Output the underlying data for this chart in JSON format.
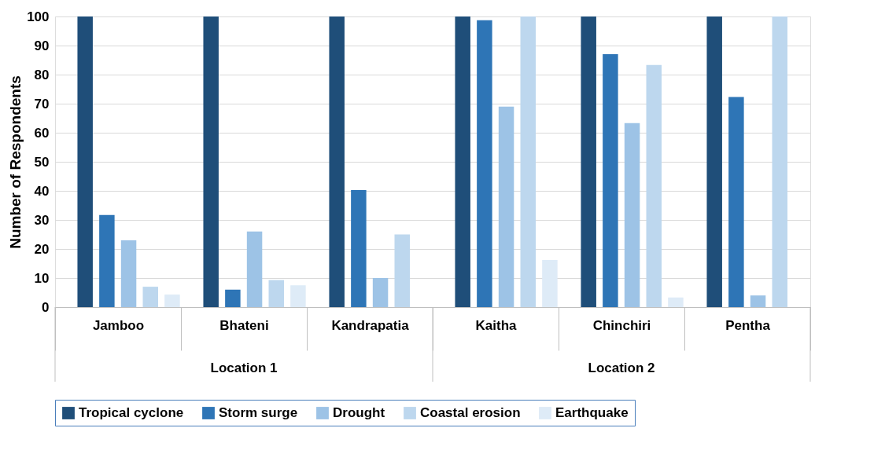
{
  "chart_data": {
    "type": "bar",
    "ylabel": "Number of Respondents",
    "categories": [
      "Jamboo",
      "Bhateni",
      "Kandrapatia",
      "Kaitha",
      "Chinchiri",
      "Pentha"
    ],
    "series": [
      {
        "name": "Tropical cyclone",
        "color": "#1f4e79",
        "values": [
          100,
          100,
          100,
          100,
          100,
          100
        ]
      },
      {
        "name": "Storm surge",
        "color": "#2e75b6",
        "values": [
          31.7,
          6,
          40.3,
          98.7,
          87,
          72.3
        ]
      },
      {
        "name": "Drought",
        "color": "#9dc3e6",
        "values": [
          23,
          26,
          10,
          69,
          63.3,
          4
        ]
      },
      {
        "name": "Coastal erosion",
        "color": "#bdd7ee",
        "values": [
          7,
          9.3,
          25,
          100,
          83.3,
          100
        ]
      },
      {
        "name": "Earthquake",
        "color": "#deebf7",
        "values": [
          4.3,
          7.5,
          null,
          16.2,
          3.3,
          null
        ]
      }
    ],
    "annotations": [
      "Location 1",
      "Location 2"
    ],
    "ylim": [
      0,
      100
    ],
    "yticks": [
      0,
      10,
      20,
      30,
      40,
      50,
      60,
      70,
      80,
      90,
      100
    ],
    "grid": "y",
    "legend": "bottom"
  }
}
